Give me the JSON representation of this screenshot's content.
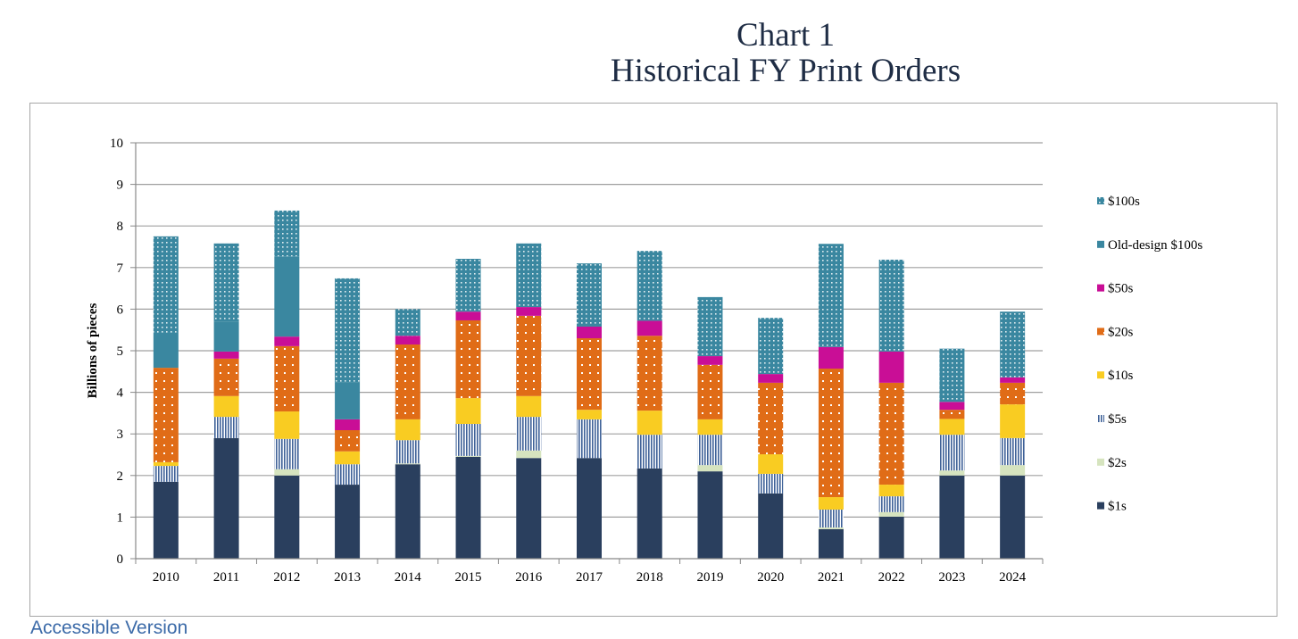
{
  "chart_data": {
    "type": "bar",
    "stacked": true,
    "title": "Chart 1",
    "subtitle": "Historical FY Print Orders",
    "xlabel": "",
    "ylabel": "Billions of pieces",
    "ylim": [
      0,
      10
    ],
    "yticks": [
      "0",
      "1",
      "2",
      "3",
      "4",
      "5",
      "6",
      "7",
      "8",
      "9",
      "10"
    ],
    "grid": true,
    "legend_position": "right",
    "categories": [
      "2010",
      "2011",
      "2012",
      "2013",
      "2014",
      "2015",
      "2016",
      "2017",
      "2018",
      "2019",
      "2020",
      "2021",
      "2022",
      "2023",
      "2024"
    ],
    "series": [
      {
        "name": "$1s",
        "color": "#2a3f5e",
        "pattern": "solid",
        "values": [
          1.85,
          2.9,
          2.0,
          1.78,
          2.27,
          2.45,
          2.42,
          2.42,
          2.17,
          2.1,
          1.57,
          0.71,
          1.01,
          2.0,
          2.0
        ]
      },
      {
        "name": "$2s",
        "color": "#d6e4bf",
        "pattern": "solid",
        "values": [
          0.0,
          0.0,
          0.15,
          0.0,
          0.02,
          0.02,
          0.18,
          0.0,
          0.0,
          0.15,
          0.0,
          0.04,
          0.11,
          0.12,
          0.25
        ]
      },
      {
        "name": "$5s",
        "color": "#4a6fa0",
        "pattern": "stripes",
        "values": [
          0.38,
          0.51,
          0.73,
          0.49,
          0.56,
          0.77,
          0.81,
          0.93,
          0.81,
          0.73,
          0.47,
          0.43,
          0.38,
          0.86,
          0.65
        ]
      },
      {
        "name": "$10s",
        "color": "#f9cc22",
        "pattern": "solid",
        "values": [
          0.09,
          0.5,
          0.66,
          0.31,
          0.5,
          0.62,
          0.5,
          0.23,
          0.58,
          0.37,
          0.47,
          0.3,
          0.28,
          0.38,
          0.81
        ]
      },
      {
        "name": "$20s",
        "color": "#e06c17",
        "pattern": "dots",
        "values": [
          2.27,
          0.9,
          1.57,
          0.51,
          1.8,
          1.87,
          1.93,
          1.72,
          1.8,
          1.31,
          1.72,
          3.09,
          2.45,
          0.22,
          0.52
        ]
      },
      {
        "name": "$50s",
        "color": "#c90e96",
        "pattern": "solid",
        "values": [
          0.0,
          0.17,
          0.23,
          0.26,
          0.21,
          0.21,
          0.21,
          0.28,
          0.36,
          0.21,
          0.21,
          0.52,
          0.75,
          0.19,
          0.13
        ]
      },
      {
        "name": "Old-design $100s",
        "color": "#3a87a0",
        "pattern": "solid",
        "values": [
          0.84,
          0.71,
          1.93,
          0.88,
          0.0,
          0.0,
          0.0,
          0.0,
          0.0,
          0.0,
          0.0,
          0.0,
          0.0,
          0.0,
          0.0
        ]
      },
      {
        "name": "$100s",
        "color": "#3a87a0",
        "pattern": "dense-dots",
        "values": [
          2.32,
          1.89,
          1.1,
          2.51,
          0.64,
          1.27,
          1.53,
          1.52,
          1.68,
          1.42,
          1.35,
          2.48,
          2.21,
          1.28,
          1.58
        ]
      }
    ]
  },
  "links": {
    "accessible": "Accessible Version"
  }
}
